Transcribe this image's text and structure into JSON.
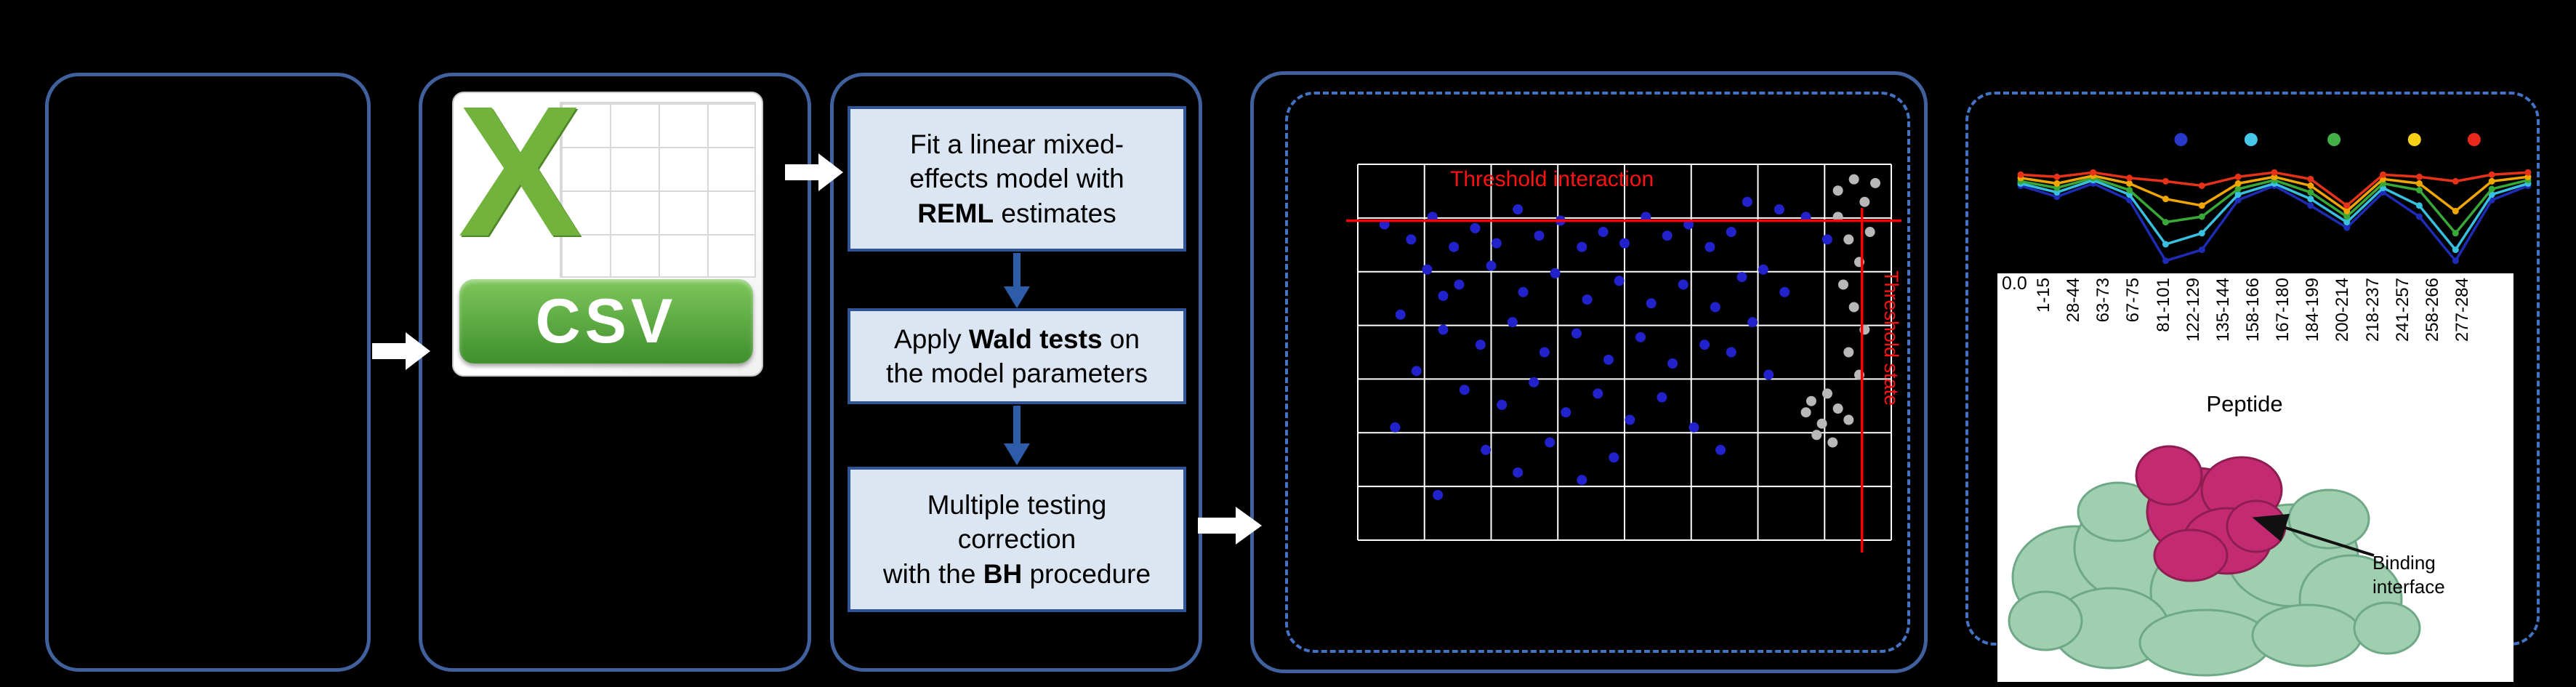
{
  "csv": {
    "x_letter": "X",
    "banner_label": "CSV"
  },
  "steps": {
    "s1": {
      "l1": "Fit a linear mixed-",
      "l2": "effects model with",
      "b": "REML",
      "l3": " estimates"
    },
    "s2": {
      "pre": "Apply ",
      "b": "Wald tests",
      "post": " on",
      "l2": "the model parameters"
    },
    "s3": {
      "l1": "Multiple testing",
      "l2": "correction",
      "pre": "with the ",
      "b": "BH",
      "post": " procedure"
    }
  },
  "chart_data": [
    {
      "type": "scatter",
      "title": "",
      "xlim": [
        0,
        100
      ],
      "ylim": [
        0,
        100
      ],
      "grid": {
        "x_divisions": 8,
        "y_divisions": 7,
        "color": "#ffffff"
      },
      "background": "#000000",
      "series": [
        {
          "name": "grey-points",
          "color": "#b8b8b8",
          "points": [
            [
              84,
              34
            ],
            [
              87,
              31
            ],
            [
              90,
              35
            ],
            [
              86,
              28
            ],
            [
              89,
              26
            ],
            [
              92,
              32
            ],
            [
              85,
              37
            ],
            [
              88,
              39
            ],
            [
              90,
              86
            ],
            [
              92,
              80
            ],
            [
              94,
              74
            ],
            [
              91,
              68
            ],
            [
              93,
              62
            ],
            [
              95,
              56
            ],
            [
              92,
              50
            ],
            [
              94,
              44
            ],
            [
              96,
              82
            ],
            [
              95,
              90
            ],
            [
              97,
              95
            ],
            [
              93,
              96
            ],
            [
              90,
              93
            ]
          ]
        },
        {
          "name": "blue-points",
          "color": "#2222cc",
          "points": [
            [
              5,
              84
            ],
            [
              10,
              80
            ],
            [
              14,
              86
            ],
            [
              18,
              78
            ],
            [
              22,
              83
            ],
            [
              26,
              79
            ],
            [
              30,
              88
            ],
            [
              34,
              81
            ],
            [
              38,
              85
            ],
            [
              42,
              78
            ],
            [
              46,
              82
            ],
            [
              50,
              79
            ],
            [
              54,
              86
            ],
            [
              58,
              81
            ],
            [
              62,
              84
            ],
            [
              66,
              78
            ],
            [
              70,
              82
            ],
            [
              73,
              90
            ],
            [
              79,
              88
            ],
            [
              84,
              86
            ],
            [
              88,
              80
            ],
            [
              13,
              72
            ],
            [
              19,
              68
            ],
            [
              25,
              73
            ],
            [
              31,
              66
            ],
            [
              37,
              71
            ],
            [
              43,
              64
            ],
            [
              49,
              69
            ],
            [
              55,
              63
            ],
            [
              61,
              68
            ],
            [
              67,
              62
            ],
            [
              72,
              70
            ],
            [
              76,
              72
            ],
            [
              80,
              66
            ],
            [
              16,
              65
            ],
            [
              16,
              56
            ],
            [
              23,
              52
            ],
            [
              29,
              58
            ],
            [
              35,
              50
            ],
            [
              41,
              55
            ],
            [
              47,
              48
            ],
            [
              53,
              54
            ],
            [
              59,
              47
            ],
            [
              65,
              52
            ],
            [
              70,
              50
            ],
            [
              74,
              58
            ],
            [
              77,
              44
            ],
            [
              11,
              45
            ],
            [
              8,
              60
            ],
            [
              20,
              40
            ],
            [
              27,
              36
            ],
            [
              33,
              42
            ],
            [
              39,
              34
            ],
            [
              45,
              39
            ],
            [
              51,
              32
            ],
            [
              57,
              38
            ],
            [
              63,
              30
            ],
            [
              7,
              30
            ],
            [
              24,
              24
            ],
            [
              30,
              18
            ],
            [
              36,
              26
            ],
            [
              15,
              12
            ],
            [
              42,
              16
            ],
            [
              48,
              22
            ],
            [
              68,
              24
            ]
          ]
        }
      ],
      "thresholds": {
        "hline": {
          "y": 85,
          "color": "#ff0000",
          "label": "Threshold interaction"
        },
        "vline": {
          "x": 94.5,
          "color": "#ff0000",
          "label": "Threshold state"
        }
      }
    },
    {
      "type": "line",
      "categories": [
        "1-15",
        "28-44",
        "63-73",
        "67-75",
        "81-101",
        "122-129",
        "135-144",
        "158-166",
        "167-180",
        "184-199",
        "200-214",
        "218-237",
        "241-257",
        "258-266",
        "277-284"
      ],
      "xlabel": "Peptide",
      "ylim": [
        0,
        1
      ],
      "ytick": "0.0",
      "legend_dot_colors": [
        "#2838c8",
        "#45c8e8",
        "#43b049",
        "#f7d117",
        "#e8291c"
      ],
      "series": [
        {
          "name": "series-blue",
          "color": "#1e2bb4",
          "values": [
            0.78,
            0.68,
            0.8,
            0.65,
            0.1,
            0.2,
            0.65,
            0.78,
            0.6,
            0.4,
            0.72,
            0.5,
            0.1,
            0.65,
            0.78
          ]
        },
        {
          "name": "series-cyan",
          "color": "#38c0e0",
          "values": [
            0.8,
            0.72,
            0.83,
            0.7,
            0.25,
            0.35,
            0.7,
            0.8,
            0.66,
            0.45,
            0.76,
            0.6,
            0.2,
            0.7,
            0.8
          ]
        },
        {
          "name": "series-green",
          "color": "#38a838",
          "values": [
            0.82,
            0.76,
            0.85,
            0.74,
            0.45,
            0.5,
            0.75,
            0.83,
            0.72,
            0.5,
            0.8,
            0.74,
            0.35,
            0.75,
            0.83
          ]
        },
        {
          "name": "series-yellow",
          "color": "#f0a500",
          "values": [
            0.85,
            0.8,
            0.87,
            0.8,
            0.66,
            0.6,
            0.8,
            0.86,
            0.78,
            0.55,
            0.84,
            0.8,
            0.55,
            0.82,
            0.86
          ]
        },
        {
          "name": "series-red",
          "color": "#e63218",
          "values": [
            0.88,
            0.86,
            0.9,
            0.85,
            0.82,
            0.78,
            0.86,
            0.9,
            0.84,
            0.6,
            0.88,
            0.86,
            0.82,
            0.88,
            0.9
          ]
        }
      ]
    }
  ],
  "results": {
    "binding_l1": "Binding",
    "binding_l2": "interface"
  }
}
